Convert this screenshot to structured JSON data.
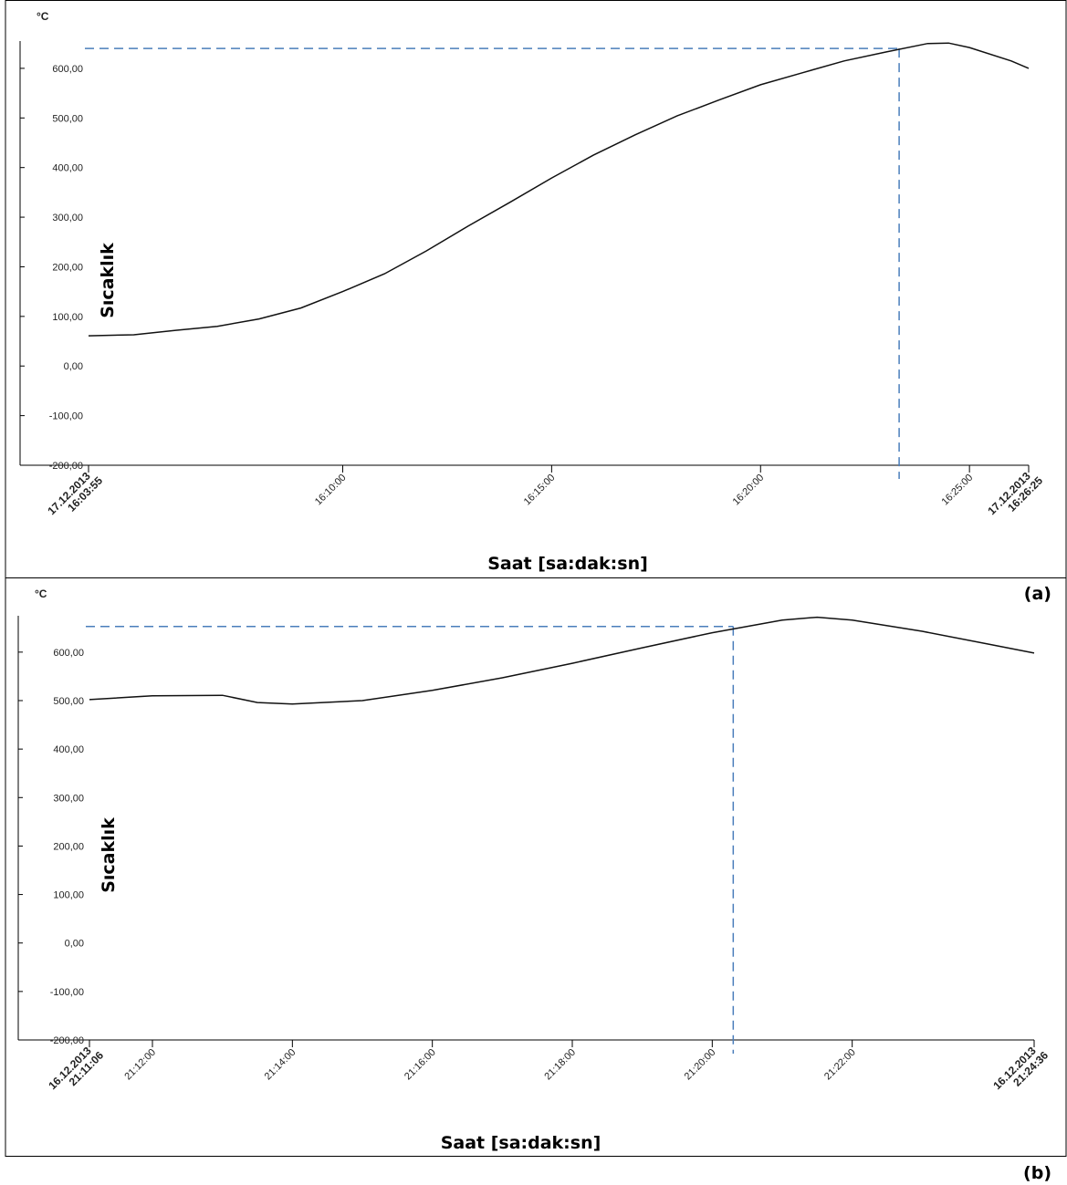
{
  "chart_data": [
    {
      "type": "line",
      "panel_label": "(a)",
      "unit": "°C",
      "y_label": "Sıcaklık",
      "x_label": "Saat [sa:dak:sn]",
      "x": [
        "16:03:55",
        "16:05:00",
        "16:06:00",
        "16:07:00",
        "16:08:00",
        "16:09:00",
        "16:10:00",
        "16:11:00",
        "16:12:00",
        "16:13:00",
        "16:14:00",
        "16:15:00",
        "16:16:00",
        "16:17:00",
        "16:18:00",
        "16:19:00",
        "16:20:00",
        "16:21:00",
        "16:22:00",
        "16:23:00",
        "16:24:00",
        "16:24:30",
        "16:25:00",
        "16:26:00",
        "16:26:25"
      ],
      "values": [
        61,
        63,
        72,
        80,
        95,
        117,
        150,
        186,
        232,
        282,
        330,
        379,
        425,
        466,
        504,
        536,
        567,
        591,
        615,
        633,
        650,
        651,
        642,
        615,
        600
      ],
      "color": "#111111",
      "xlim": [
        "16:03:55",
        "16:26:25"
      ],
      "xticks": [
        {
          "value": "16:03:55",
          "label": "17.12.2013 16:03:55"
        },
        "16:10:00",
        "16:15:00",
        "16:20:00",
        "16:25:00",
        {
          "value": "16:26:25",
          "label": "17.12.2013 16:26:25"
        }
      ],
      "ylim": [
        -200,
        655
      ],
      "yticks": [
        {
          "value": -200,
          "label": "-200,00"
        },
        {
          "value": -100,
          "label": "-100,00"
        },
        {
          "value": 0,
          "label": "0,00"
        },
        {
          "value": 100,
          "label": "100,00"
        },
        {
          "value": 200,
          "label": "200,00"
        },
        {
          "value": 300,
          "label": "300,00"
        },
        {
          "value": 400,
          "label": "400,00"
        },
        {
          "value": 500,
          "label": "500,00"
        },
        {
          "value": 600,
          "label": "600,00"
        }
      ],
      "reference_lines": {
        "x": "16:23:19",
        "y": 640,
        "color": "#4a7ebb"
      }
    },
    {
      "type": "line",
      "panel_label": "(b)",
      "unit": "°C",
      "y_label": "Sıcaklık",
      "x_label": "Saat [sa:dak:sn]",
      "x": [
        "21:11:06",
        "21:12:00",
        "21:13:00",
        "21:13:30",
        "21:14:00",
        "21:15:00",
        "21:16:00",
        "21:17:00",
        "21:18:00",
        "21:19:00",
        "21:20:00",
        "21:21:00",
        "21:21:30",
        "21:22:00",
        "21:23:00",
        "21:24:00",
        "21:24:36"
      ],
      "values": [
        502,
        510,
        511,
        496,
        493,
        500,
        521,
        547,
        577,
        609,
        640,
        666,
        672,
        666,
        643,
        615,
        598
      ],
      "color": "#111111",
      "xlim": [
        "21:11:06",
        "21:24:36"
      ],
      "xticks": [
        {
          "value": "21:11:06",
          "label": "16.12.2013 21:11:06"
        },
        "21:12:00",
        "21:14:00",
        "21:16:00",
        "21:18:00",
        "21:20:00",
        "21:22:00",
        {
          "value": "21:24:36",
          "label": "16.12.2013 21:24:36"
        }
      ],
      "ylim": [
        -200,
        675
      ],
      "yticks": [
        {
          "value": -200,
          "label": "-200,00"
        },
        {
          "value": -100,
          "label": "-100,00"
        },
        {
          "value": 0,
          "label": "0,00"
        },
        {
          "value": 100,
          "label": "100,00"
        },
        {
          "value": 200,
          "label": "200,00"
        },
        {
          "value": 300,
          "label": "300,00"
        },
        {
          "value": 400,
          "label": "400,00"
        },
        {
          "value": 500,
          "label": "500,00"
        },
        {
          "value": 600,
          "label": "600,00"
        }
      ],
      "reference_lines": {
        "x": "21:20:18",
        "y": 653,
        "color": "#4a7ebb"
      }
    }
  ]
}
